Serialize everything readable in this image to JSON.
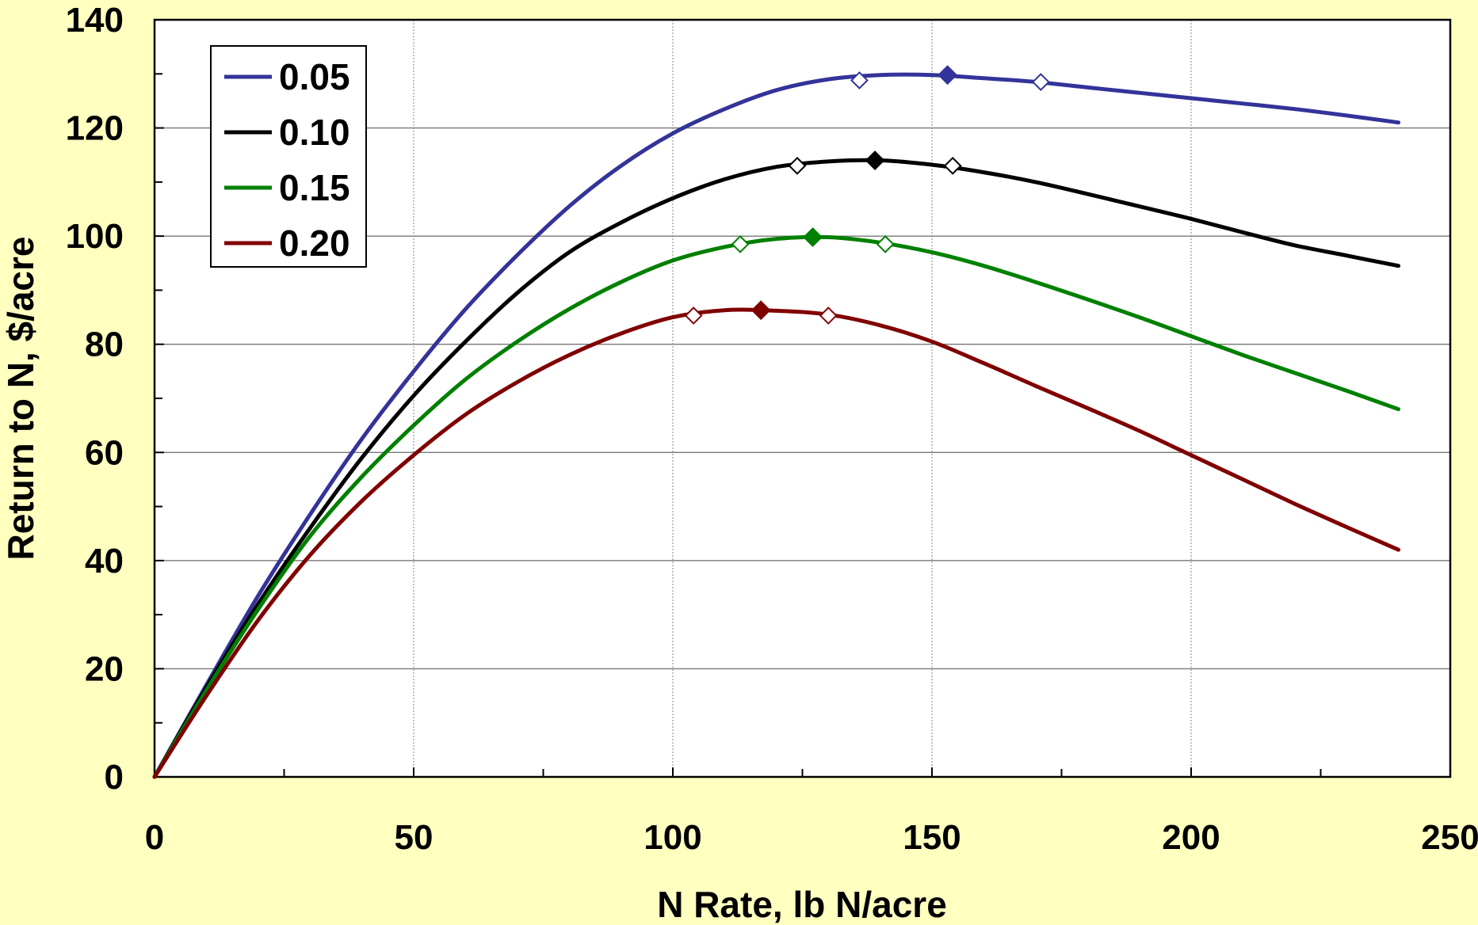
{
  "chart_data": {
    "type": "line",
    "xlabel": "N Rate, lb N/acre",
    "ylabel": "Return to N, $/acre",
    "xlim": [
      0,
      250
    ],
    "ylim": [
      0,
      140
    ],
    "xticks": [
      0,
      50,
      100,
      150,
      200,
      250
    ],
    "yticks": [
      0,
      20,
      40,
      60,
      80,
      100,
      120,
      140
    ],
    "grid": true,
    "legend_position": "top-left",
    "series": [
      {
        "name": "0.05",
        "color": "#333399",
        "x": [
          0,
          10,
          20,
          30,
          40,
          50,
          60,
          70,
          80,
          90,
          100,
          110,
          120,
          130,
          140,
          150,
          160,
          170,
          180,
          190,
          200,
          210,
          220,
          230,
          240
        ],
        "y": [
          0,
          17,
          33.5,
          48.5,
          62.5,
          75,
          86.5,
          96.5,
          105.5,
          113,
          119,
          123.5,
          127,
          129,
          129.8,
          129.8,
          129.2,
          128.5,
          127.5,
          126.5,
          125.5,
          124.5,
          123.5,
          122.3,
          121
        ],
        "optimum": {
          "x": 153,
          "y": 129.8
        },
        "range_markers": [
          {
            "x": 136,
            "y": 128.8
          },
          {
            "x": 171,
            "y": 128.5
          }
        ]
      },
      {
        "name": "0.10",
        "color": "#000000",
        "x": [
          0,
          10,
          20,
          30,
          40,
          50,
          60,
          70,
          80,
          90,
          100,
          110,
          120,
          130,
          140,
          150,
          160,
          170,
          180,
          190,
          200,
          210,
          220,
          230,
          240
        ],
        "y": [
          0,
          16.5,
          32,
          46,
          59,
          70.5,
          80.5,
          89.5,
          97,
          102.5,
          107,
          110.5,
          112.8,
          113.8,
          114,
          113.2,
          111.8,
          110,
          107.8,
          105.5,
          103.2,
          100.7,
          98.3,
          96.4,
          94.5
        ],
        "optimum": {
          "x": 139,
          "y": 114
        },
        "range_markers": [
          {
            "x": 124,
            "y": 113
          },
          {
            "x": 154,
            "y": 113
          }
        ]
      },
      {
        "name": "0.15",
        "color": "#008000",
        "x": [
          0,
          10,
          20,
          30,
          40,
          50,
          60,
          70,
          80,
          90,
          100,
          110,
          120,
          130,
          140,
          150,
          160,
          170,
          180,
          190,
          200,
          210,
          220,
          230,
          240
        ],
        "y": [
          0,
          16,
          31,
          44.5,
          55.5,
          65,
          73.5,
          80.5,
          86.5,
          91.5,
          95.5,
          98,
          99.5,
          99.8,
          98.8,
          97,
          94.5,
          91.5,
          88.3,
          85,
          81.5,
          78,
          74.7,
          71.4,
          68
        ],
        "optimum": {
          "x": 127,
          "y": 99.8
        },
        "range_markers": [
          {
            "x": 113,
            "y": 98.5
          },
          {
            "x": 141,
            "y": 98.5
          }
        ]
      },
      {
        "name": "0.20",
        "color": "#800000",
        "x": [
          0,
          10,
          20,
          30,
          40,
          50,
          60,
          70,
          80,
          90,
          100,
          110,
          120,
          130,
          140,
          150,
          160,
          170,
          180,
          190,
          200,
          210,
          220,
          230,
          240
        ],
        "y": [
          0,
          15,
          29,
          41,
          51,
          59.5,
          67,
          73,
          78,
          82,
          85,
          86.3,
          86.2,
          85.5,
          83.5,
          80.5,
          76.5,
          72.3,
          68.2,
          64,
          59.5,
          55,
          50.5,
          46.2,
          42
        ],
        "optimum": {
          "x": 117,
          "y": 86.3
        },
        "range_markers": [
          {
            "x": 104,
            "y": 85.3
          },
          {
            "x": 130,
            "y": 85.3
          }
        ]
      }
    ]
  }
}
